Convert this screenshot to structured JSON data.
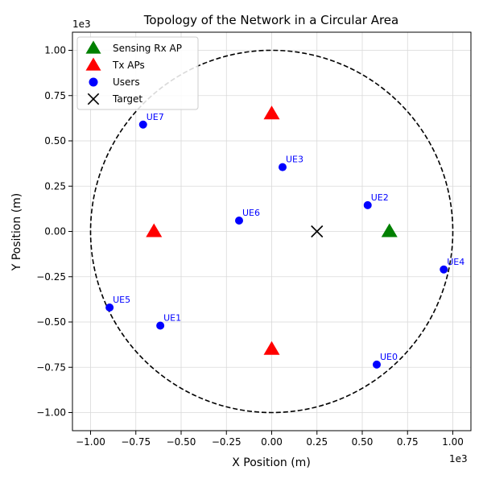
{
  "chart_data": {
    "type": "scatter",
    "title": "Topology of the Network in a Circular Area",
    "xlabel": "X Position (m)",
    "ylabel": "Y Position (m)",
    "x_multiplier_label": "1e3",
    "y_multiplier_label": "1e3",
    "xlim": [
      -1100,
      1100
    ],
    "ylim": [
      -1100,
      1100
    ],
    "xticks": [
      -1000,
      -750,
      -500,
      -250,
      0,
      250,
      500,
      750,
      1000
    ],
    "yticks": [
      -1000,
      -750,
      -500,
      -250,
      0,
      250,
      500,
      750,
      1000
    ],
    "xtick_labels": [
      "−1.00",
      "−0.75",
      "−0.50",
      "−0.25",
      "0.00",
      "0.25",
      "0.50",
      "0.75",
      "1.00"
    ],
    "ytick_labels": [
      "−1.00",
      "−0.75",
      "−0.50",
      "−0.25",
      "0.00",
      "0.25",
      "0.50",
      "0.75",
      "1.00"
    ],
    "grid": true,
    "legend_position": "top-left",
    "circle": {
      "center": [
        0,
        0
      ],
      "radius": 1000,
      "style": "dashed",
      "color": "#000000"
    },
    "series": [
      {
        "name": "Sensing Rx AP",
        "marker": "triangle",
        "color": "#008000",
        "points": [
          [
            650,
            0
          ]
        ]
      },
      {
        "name": "Tx APs",
        "marker": "triangle",
        "color": "#ff0000",
        "points": [
          [
            0,
            650
          ],
          [
            -650,
            0
          ],
          [
            0,
            -650
          ]
        ]
      },
      {
        "name": "Users",
        "marker": "circle",
        "color": "#0000ff",
        "points": [
          [
            580,
            -735
          ],
          [
            -615,
            -520
          ],
          [
            530,
            145
          ],
          [
            60,
            355
          ],
          [
            950,
            -210
          ],
          [
            -895,
            -420
          ],
          [
            -180,
            60
          ],
          [
            -710,
            590
          ]
        ],
        "labels": [
          "UE0",
          "UE1",
          "UE2",
          "UE3",
          "UE4",
          "UE5",
          "UE6",
          "UE7"
        ]
      },
      {
        "name": "Target",
        "marker": "x",
        "color": "#000000",
        "points": [
          [
            250,
            0
          ]
        ]
      }
    ]
  }
}
